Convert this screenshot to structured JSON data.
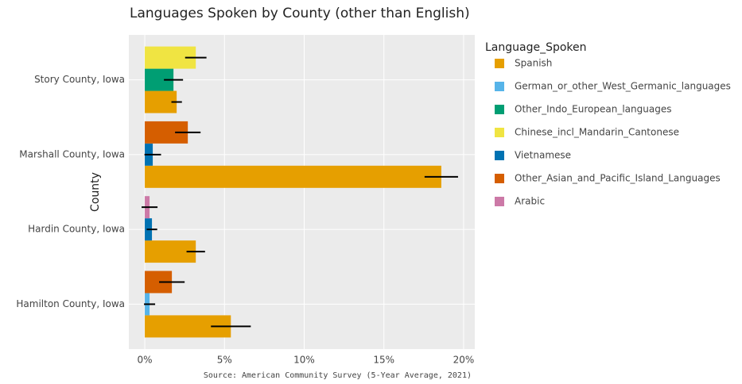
{
  "chart_data": {
    "type": "bar",
    "orientation": "horizontal",
    "title": "Languages Spoken by County (other than English)",
    "y_label": "County",
    "source": "Source: American Community Survey (5-Year Average, 2021)",
    "legend_title": "Language_Spoken",
    "categories": [
      "Hamilton County, Iowa",
      "Hardin County, Iowa",
      "Marshall County, Iowa",
      "Story County, Iowa"
    ],
    "series": [
      {
        "name": "Spanish",
        "color": "#E69F00",
        "values": [
          5.4,
          3.2,
          18.6,
          2.0
        ],
        "errors": [
          1.25,
          0.58,
          1.05,
          0.33
        ]
      },
      {
        "name": "German_or_other_West_Germanic_languages",
        "color": "#56B4E9",
        "values": [
          0.3,
          null,
          null,
          null
        ],
        "errors": [
          0.35,
          null,
          null,
          null
        ]
      },
      {
        "name": "Other_Indo_European_languages",
        "color": "#009E73",
        "values": [
          null,
          null,
          null,
          1.8
        ],
        "errors": [
          null,
          null,
          null,
          0.6
        ]
      },
      {
        "name": "Chinese_incl_Mandarin_Cantonese",
        "color": "#F0E442",
        "values": [
          null,
          null,
          null,
          3.2
        ],
        "errors": [
          null,
          null,
          null,
          0.67
        ]
      },
      {
        "name": "Vietnamese",
        "color": "#0072B2",
        "values": [
          null,
          0.45,
          0.5,
          null
        ],
        "errors": [
          null,
          0.33,
          0.52,
          null
        ]
      },
      {
        "name": "Other_Asian_and_Pacific_Island_Languages",
        "color": "#D55E00",
        "values": [
          1.7,
          null,
          2.7,
          null
        ],
        "errors": [
          0.8,
          null,
          0.8,
          null
        ]
      },
      {
        "name": "Arabic",
        "color": "#CC79A7",
        "values": [
          null,
          0.3,
          null,
          null
        ],
        "errors": [
          null,
          0.5,
          null,
          null
        ]
      }
    ],
    "xlim": [
      -1,
      20.7
    ],
    "xticks": [
      {
        "value": 0,
        "label": "0%"
      },
      {
        "value": 5,
        "label": "5%"
      },
      {
        "value": 10,
        "label": "10%"
      },
      {
        "value": 15,
        "label": "15%"
      },
      {
        "value": 20,
        "label": "20%"
      }
    ],
    "grid": true
  }
}
